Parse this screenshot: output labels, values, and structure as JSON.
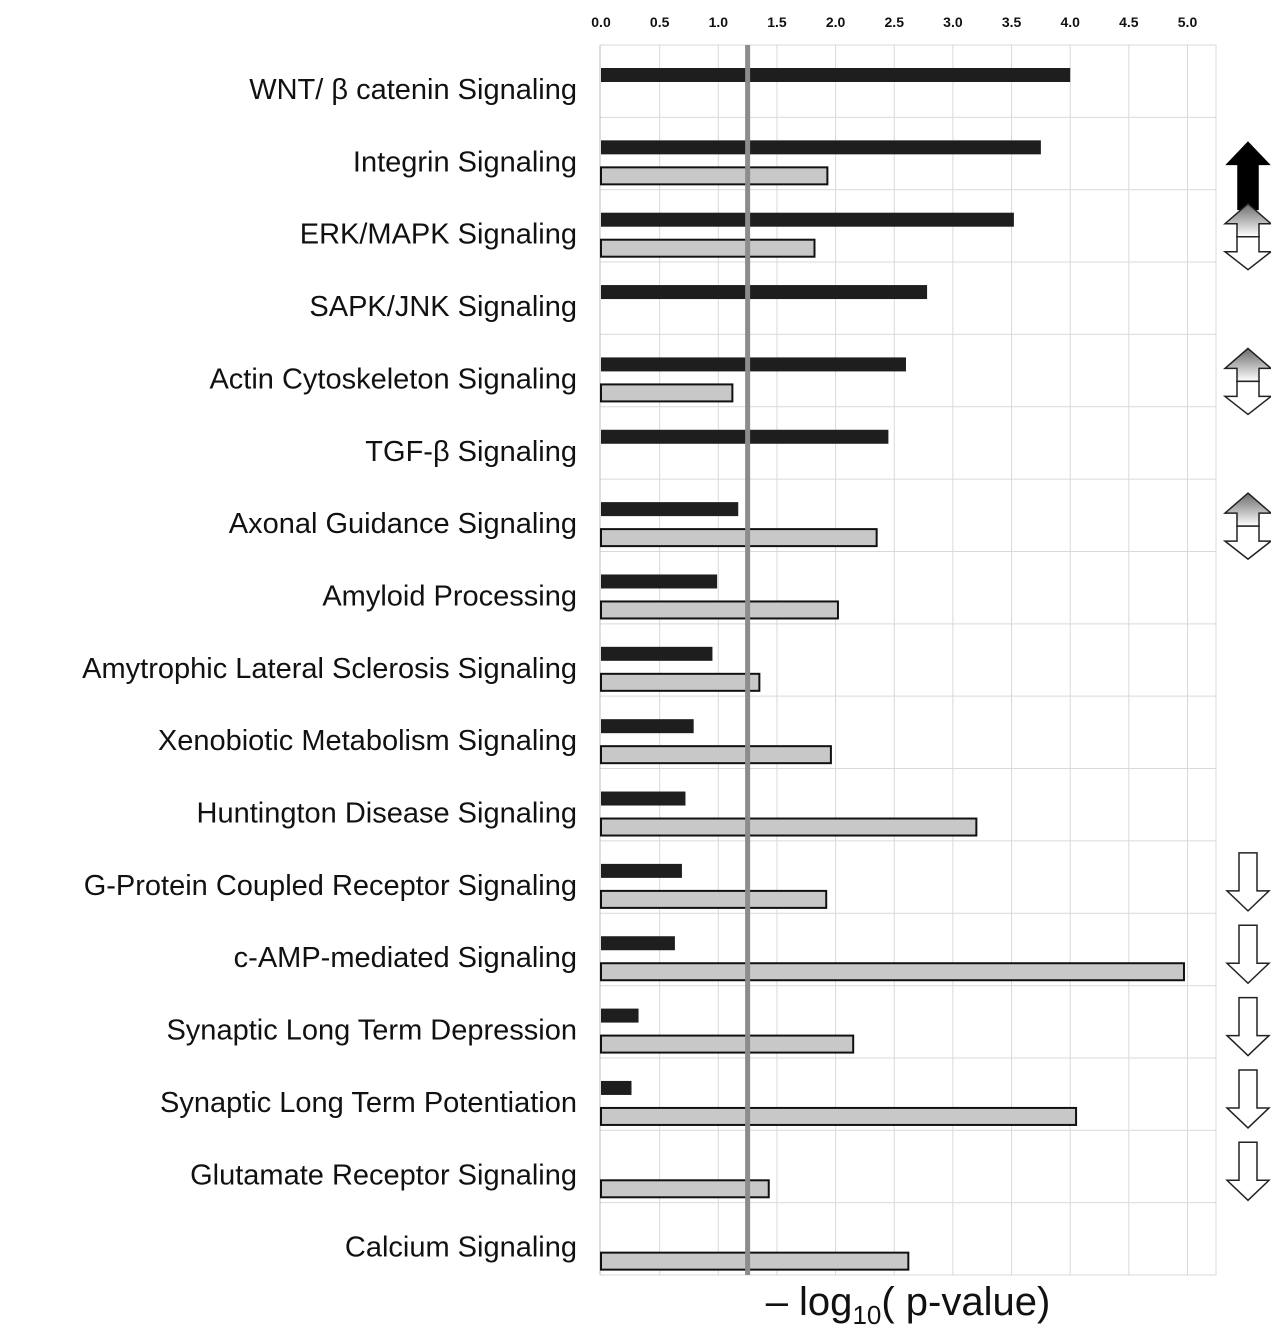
{
  "chart_data": {
    "type": "bar",
    "orientation": "horizontal",
    "xlabel": {
      "prefix": "– log",
      "subscript": "10",
      "suffix": "( p-value)"
    },
    "xlim": [
      0,
      5.2
    ],
    "xticks": [
      "0.0",
      "0.5",
      "1.0",
      "1.5",
      "2.0",
      "2.5",
      "3.0",
      "3.5",
      "4.0",
      "4.5",
      "5.0"
    ],
    "tick_values": [
      0,
      0.5,
      1.0,
      1.5,
      2.0,
      2.5,
      3.0,
      3.5,
      4.0,
      4.5,
      5.0
    ],
    "threshold": 1.25,
    "grid": true,
    "colors": {
      "series1": "#1e1e1e",
      "series2": "#c8c8c8",
      "threshold": "#8c8c8c",
      "grid": "#d9d9d9"
    },
    "categories": [
      "WNT/ β catenin Signaling",
      "Integrin Signaling",
      "ERK/MAPK Signaling",
      "SAPK/JNK Signaling",
      "Actin Cytoskeleton Signaling",
      "TGF-β Signaling",
      "Axonal Guidance Signaling",
      "Amyloid Processing",
      "Amytrophic Lateral Sclerosis Signaling",
      "Xenobiotic Metabolism Signaling",
      "Huntington Disease Signaling",
      "G-Protein Coupled Receptor Signaling",
      "c-AMP-mediated Signaling",
      "Synaptic Long Term Depression",
      "Synaptic Long Term Potentiation",
      "Glutamate Receptor Signaling",
      "Calcium Signaling"
    ],
    "series": [
      {
        "values": [
          4.0,
          3.75,
          3.52,
          2.78,
          2.6,
          2.45,
          1.17,
          0.99,
          0.95,
          0.79,
          0.72,
          0.69,
          0.63,
          0.32,
          0.26,
          null,
          null
        ]
      },
      {
        "values": [
          null,
          1.93,
          1.82,
          null,
          1.12,
          null,
          2.35,
          2.02,
          1.35,
          1.96,
          3.2,
          1.92,
          4.97,
          2.15,
          4.05,
          1.43,
          2.62
        ]
      }
    ],
    "arrows": [
      "none",
      "up-solid",
      "both",
      "none",
      "both",
      "none",
      "both",
      "none",
      "none",
      "none",
      "none",
      "down",
      "down",
      "down",
      "down",
      "down",
      "none"
    ]
  }
}
